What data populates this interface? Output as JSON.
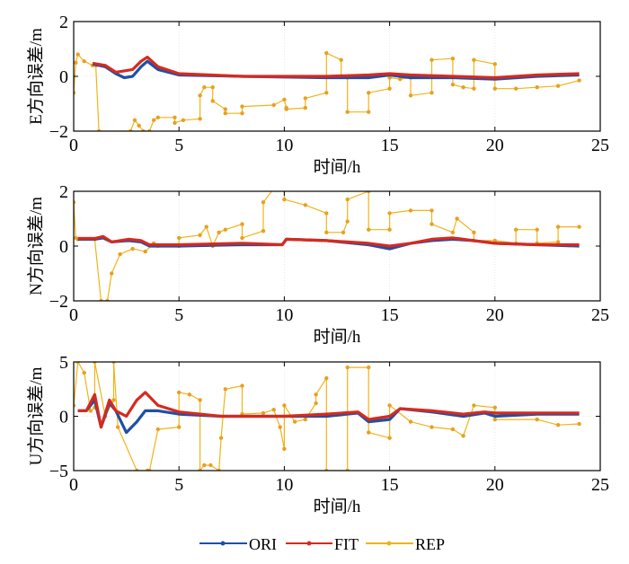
{
  "chart_data": [
    {
      "type": "line",
      "title": "",
      "xlabel": "时间/h",
      "ylabel": "E方向误差/m",
      "xlim": [
        0,
        25
      ],
      "ylim": [
        -2,
        2
      ],
      "xticks": [
        "0",
        "5",
        "10",
        "15",
        "20",
        "25"
      ],
      "yticks": [
        "-2",
        "0",
        "2"
      ],
      "grid": true,
      "series": [
        {
          "name": "ORI",
          "color": "#1f4fa8",
          "x": [
            0.9,
            1.5,
            2,
            2.4,
            2.8,
            3.2,
            3.5,
            4,
            5,
            8,
            12,
            14,
            15,
            16,
            18,
            20,
            22,
            24
          ],
          "y": [
            0.45,
            0.35,
            0.1,
            -0.05,
            0.0,
            0.35,
            0.55,
            0.25,
            0.05,
            0.0,
            -0.05,
            -0.05,
            0.05,
            -0.05,
            -0.05,
            -0.1,
            0.0,
            0.05
          ]
        },
        {
          "name": "FIT",
          "color": "#d62a1e",
          "x": [
            0.9,
            1.5,
            2,
            2.4,
            2.8,
            3.2,
            3.5,
            4,
            5,
            8,
            12,
            14,
            15,
            16,
            18,
            20,
            22,
            24
          ],
          "y": [
            0.48,
            0.4,
            0.15,
            0.2,
            0.25,
            0.55,
            0.7,
            0.35,
            0.1,
            0.0,
            0.0,
            0.05,
            0.1,
            0.05,
            0.0,
            -0.05,
            0.05,
            0.1
          ]
        },
        {
          "name": "REP",
          "color": "#f0b418",
          "x": [
            0,
            0.1,
            0.2,
            0.5,
            0.9,
            1.05,
            1.2,
            2.7,
            2.9,
            3.1,
            3.3,
            3.6,
            3.8,
            4.0,
            4.8,
            4.8,
            5.2,
            6.0,
            6.0,
            6.2,
            6.6,
            6.6,
            7.2,
            7.2,
            8.0,
            8.0,
            9.5,
            10.0,
            10.1,
            10.1,
            11.0,
            11.0,
            12.0,
            12.0,
            12.7,
            12.7,
            13.0,
            13.0,
            14.0,
            14.0,
            15.0,
            15.0,
            15.5,
            16.0,
            16.0,
            17.0,
            17.0,
            18.0,
            18.0,
            18.5,
            19.0,
            19.0,
            20.0,
            20.0,
            21.0,
            22.0,
            23.0,
            24.0
          ],
          "y": [
            -0.6,
            0.5,
            0.8,
            0.55,
            0.4,
            0.4,
            -2.0,
            -2.0,
            -1.6,
            -1.8,
            -2.0,
            -2.0,
            -1.6,
            -1.5,
            -1.5,
            -1.7,
            -1.6,
            -1.55,
            -0.7,
            -0.4,
            -0.4,
            -0.9,
            -1.2,
            -1.35,
            -1.35,
            -1.1,
            -1.05,
            -0.85,
            -1.15,
            -1.2,
            -1.15,
            -0.8,
            -0.6,
            0.85,
            0.6,
            0.0,
            -0.05,
            -1.3,
            -1.3,
            -0.6,
            -0.45,
            -0.05,
            -0.1,
            -0.05,
            -0.7,
            -0.6,
            0.6,
            0.65,
            -0.3,
            -0.4,
            -0.45,
            0.6,
            0.45,
            -0.45,
            -0.45,
            -0.4,
            -0.35,
            -0.15
          ]
        }
      ]
    },
    {
      "type": "line",
      "title": "",
      "xlabel": "时间/h",
      "ylabel": "N方向误差/m",
      "xlim": [
        0,
        25
      ],
      "ylim": [
        -2,
        2
      ],
      "xticks": [
        "0",
        "5",
        "10",
        "15",
        "20",
        "25"
      ],
      "yticks": [
        "-2",
        "0",
        "2"
      ],
      "grid": true,
      "series": [
        {
          "name": "ORI",
          "color": "#1f4fa8",
          "x": [
            0.2,
            1,
            1.4,
            1.8,
            2.6,
            3.2,
            3.6,
            5,
            8,
            9.9,
            10.1,
            12,
            14,
            15,
            16,
            17,
            18,
            19,
            20,
            22,
            24
          ],
          "y": [
            0.25,
            0.25,
            0.3,
            0.15,
            0.2,
            0.15,
            0.0,
            0.0,
            0.05,
            0.05,
            0.25,
            0.2,
            0.05,
            -0.1,
            0.1,
            0.2,
            0.25,
            0.2,
            0.1,
            0.05,
            0.0
          ]
        },
        {
          "name": "FIT",
          "color": "#d62a1e",
          "x": [
            0.2,
            1,
            1.4,
            1.8,
            2.6,
            3.2,
            3.6,
            5,
            8,
            9.9,
            10.1,
            12,
            14,
            15,
            16,
            17,
            18,
            19,
            20,
            22,
            24
          ],
          "y": [
            0.28,
            0.28,
            0.35,
            0.15,
            0.25,
            0.2,
            0.05,
            0.05,
            0.1,
            0.05,
            0.25,
            0.2,
            0.1,
            0.0,
            0.1,
            0.25,
            0.3,
            0.2,
            0.1,
            0.05,
            0.05
          ]
        },
        {
          "name": "REP",
          "color": "#f0b418",
          "x": [
            0,
            0.1,
            0.2,
            1.0,
            1.3,
            1.6,
            1.8,
            2.2,
            2.8,
            3.4,
            3.8,
            4.0,
            5.0,
            5.0,
            6.0,
            6.3,
            6.6,
            6.9,
            7.2,
            8.0,
            8.0,
            9.0,
            9.0,
            9.5,
            10.0,
            10.0,
            11.0,
            12.0,
            12.0,
            12.8,
            13.0,
            13.0,
            14.0,
            14.0,
            15.0,
            15.0,
            16.0,
            17.0,
            17.0,
            18.0,
            18.2,
            19.0,
            19.0,
            20.0,
            21.0,
            21.0,
            22.0,
            22.0,
            23.0,
            23.0,
            24.0
          ],
          "y": [
            1.6,
            0.3,
            0.25,
            0.25,
            -2.0,
            -2.0,
            -1.0,
            -0.3,
            -0.1,
            -0.2,
            0.1,
            0.0,
            0.0,
            0.3,
            0.4,
            0.7,
            0.0,
            0.5,
            0.6,
            0.8,
            0.3,
            0.55,
            1.6,
            2.1,
            2.2,
            1.7,
            1.5,
            1.2,
            0.5,
            0.5,
            0.9,
            1.7,
            2.0,
            0.6,
            0.6,
            1.2,
            1.3,
            1.3,
            0.8,
            0.5,
            1.0,
            0.5,
            0.2,
            0.2,
            0.1,
            0.6,
            0.6,
            0.1,
            0.15,
            0.7,
            0.7
          ]
        }
      ]
    },
    {
      "type": "line",
      "title": "",
      "xlabel": "时间/h",
      "ylabel": "U方向误差/m",
      "xlim": [
        0,
        25
      ],
      "ylim": [
        -5,
        5
      ],
      "xticks": [
        "0",
        "5",
        "10",
        "15",
        "20",
        "25"
      ],
      "yticks": [
        "-5",
        "0",
        "5"
      ],
      "grid": true,
      "series": [
        {
          "name": "ORI",
          "color": "#1f4fa8",
          "x": [
            0.2,
            0.6,
            1.0,
            1.3,
            1.7,
            2.0,
            2.5,
            3.0,
            3.4,
            4.0,
            5.0,
            7.0,
            10.0,
            12.0,
            13.5,
            14.0,
            15.0,
            15.5,
            17.0,
            18.5,
            19.5,
            20.0,
            22.0,
            24.0
          ],
          "y": [
            0.5,
            0.5,
            1.5,
            -1.0,
            1.2,
            0.5,
            -1.5,
            -0.5,
            0.5,
            0.5,
            0.2,
            0.0,
            0.0,
            0.0,
            0.3,
            -0.5,
            -0.3,
            0.7,
            0.4,
            0.0,
            0.3,
            0.0,
            0.2,
            0.2
          ]
        },
        {
          "name": "FIT",
          "color": "#d62a1e",
          "x": [
            0.2,
            0.6,
            1.0,
            1.3,
            1.7,
            2.0,
            2.5,
            3.0,
            3.4,
            4.0,
            5.0,
            7.0,
            10.0,
            12.0,
            13.5,
            14.0,
            15.0,
            15.5,
            17.0,
            18.5,
            19.5,
            20.0,
            22.0,
            24.0
          ],
          "y": [
            0.5,
            0.5,
            2.0,
            -1.0,
            1.5,
            0.5,
            0.0,
            1.5,
            2.2,
            1.0,
            0.4,
            0.0,
            0.0,
            0.2,
            0.4,
            -0.3,
            0.0,
            0.7,
            0.5,
            0.2,
            0.4,
            0.3,
            0.3,
            0.3
          ]
        },
        {
          "name": "REP",
          "color": "#f0b418",
          "x": [
            0,
            0.2,
            0.5,
            0.8,
            1.0,
            1.0,
            1.5,
            1.9,
            1.9,
            2.1,
            3.0,
            3.5,
            3.6,
            4.0,
            5.0,
            5.0,
            5.5,
            6.0,
            6.0,
            6.2,
            6.5,
            6.9,
            7.0,
            7.2,
            8.0,
            8.0,
            9.0,
            9.5,
            9.8,
            10.0,
            10.0,
            10.5,
            11.0,
            11.5,
            11.5,
            12.0,
            12.0,
            13.0,
            13.0,
            14.0,
            14.0,
            15.0,
            15.0,
            16.0,
            17.0,
            18.0,
            18.5,
            19.0,
            20.0,
            20.0,
            22.0,
            23.0,
            24.0
          ],
          "y": [
            1.0,
            5.0,
            4.0,
            0.5,
            0.8,
            5.0,
            0.0,
            1.5,
            5.0,
            -1.0,
            -5.0,
            -5.0,
            -5.0,
            -1.2,
            -1.0,
            2.2,
            2.0,
            1.5,
            -5.0,
            -4.5,
            -4.5,
            -5.0,
            -2.0,
            2.5,
            2.8,
            0.2,
            0.3,
            0.6,
            -1.0,
            -3.0,
            1.0,
            -0.5,
            -0.3,
            1.2,
            2.0,
            3.5,
            -5.0,
            -5.0,
            4.5,
            4.5,
            -1.5,
            -2.0,
            1.0,
            -0.5,
            -1.0,
            -1.2,
            -1.8,
            1.0,
            0.8,
            -0.3,
            -0.3,
            -0.8,
            -0.7
          ]
        }
      ]
    }
  ],
  "legend": {
    "placement": "bottom",
    "entries": [
      {
        "name": "ORI",
        "color": "#1f4fa8"
      },
      {
        "name": "FIT",
        "color": "#d62a1e"
      },
      {
        "name": "REP",
        "color": "#f0b418"
      }
    ]
  }
}
